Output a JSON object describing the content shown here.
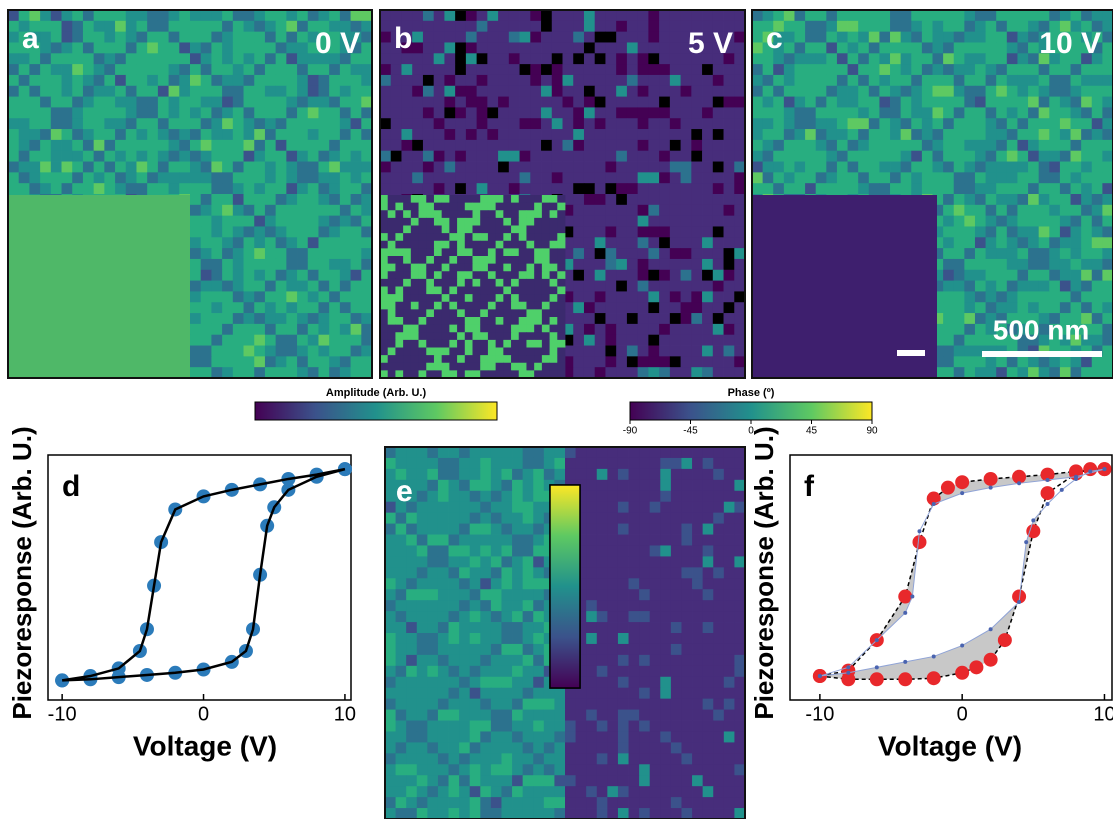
{
  "panels": [
    {
      "label": "a",
      "voltage": "0 V"
    },
    {
      "label": "b",
      "voltage": "5 V"
    },
    {
      "label": "c",
      "voltage": "10 V",
      "scale_bar": "500 nm"
    }
  ],
  "colorbars": {
    "amplitude": {
      "label": "Amplitude (Arb. U.)"
    },
    "phase": {
      "label": "Phase (º)",
      "lim": [
        -90,
        90
      ],
      "ticks": [
        -90,
        -45,
        0,
        45,
        90
      ]
    }
  },
  "panel_e": {
    "label": "e"
  },
  "chart_data": [
    {
      "type": "line",
      "label": "d",
      "ylabel": "Piezoresponse (Arb. U.)",
      "xlabel": "Voltage (V)",
      "xlim": [
        -11,
        10.5
      ],
      "xticks": [
        -10,
        0,
        10
      ],
      "ylim": [
        -1.15,
        1.1
      ],
      "series": [
        {
          "mode": "markers",
          "color": "#2b7bba",
          "x": [
            -10,
            -8,
            -6,
            -4,
            -2,
            0,
            2,
            3,
            3.5,
            4,
            4.5,
            5,
            6,
            8,
            10,
            10,
            8,
            6,
            4,
            2,
            0,
            -2,
            -3,
            -3.5,
            -4,
            -4.5,
            -6,
            -8,
            -10
          ],
          "values": [
            -0.97,
            -0.96,
            -0.94,
            -0.92,
            -0.9,
            -0.87,
            -0.8,
            -0.7,
            -0.5,
            0,
            0.45,
            0.62,
            0.78,
            0.9,
            0.97,
            0.97,
            0.92,
            0.88,
            0.83,
            0.78,
            0.72,
            0.6,
            0.3,
            -0.1,
            -0.5,
            -0.7,
            -0.86,
            -0.93,
            -0.97
          ]
        },
        {
          "mode": "line",
          "color": "#000000",
          "x": [
            -10,
            -8,
            -6,
            -4,
            -2,
            0,
            2,
            3,
            3.5,
            4,
            4.5,
            5,
            6,
            8,
            10,
            10,
            8,
            6,
            4,
            2,
            0,
            -2,
            -3,
            -3.5,
            -4,
            -4.5,
            -6,
            -8,
            -10
          ],
          "values": [
            -0.97,
            -0.96,
            -0.94,
            -0.92,
            -0.9,
            -0.87,
            -0.8,
            -0.7,
            -0.5,
            0,
            0.45,
            0.62,
            0.78,
            0.9,
            0.97,
            0.97,
            0.92,
            0.88,
            0.83,
            0.78,
            0.72,
            0.6,
            0.3,
            -0.1,
            -0.5,
            -0.7,
            -0.86,
            -0.93,
            -0.97
          ]
        }
      ]
    },
    {
      "type": "line",
      "label": "f",
      "ylabel": "Piezoresponse (Arb. U.)",
      "xlabel": "Voltage (V)",
      "xlim": [
        -12.1,
        10.6
      ],
      "xticks": [
        -10,
        0,
        10
      ],
      "ylim": [
        -1.15,
        1.1
      ],
      "series": [
        {
          "mode": "markers-line",
          "color": "#e8282b",
          "x": [
            -10,
            -8,
            -6,
            -4,
            -2,
            0,
            1,
            2,
            3,
            4,
            5,
            6,
            8,
            9,
            10,
            10,
            8,
            6,
            4,
            2,
            0,
            -1,
            -2,
            -3,
            -4,
            -6,
            -8,
            -10
          ],
          "values": [
            -0.93,
            -0.96,
            -0.96,
            -0.96,
            -0.95,
            -0.9,
            -0.85,
            -0.78,
            -0.6,
            -0.2,
            0.4,
            0.75,
            0.93,
            0.97,
            0.97,
            0.97,
            0.95,
            0.92,
            0.9,
            0.88,
            0.85,
            0.8,
            0.7,
            0.3,
            -0.2,
            -0.6,
            -0.88,
            -0.93
          ]
        },
        {
          "mode": "small-markers",
          "color": "#4a64b0",
          "x": [
            -10,
            -8,
            -6,
            -4,
            -2,
            0,
            2,
            4,
            4.5,
            5,
            6,
            7,
            8,
            9,
            10,
            10,
            8,
            6,
            4,
            2,
            0,
            -2,
            -3,
            -3.5,
            -4,
            -6,
            -8,
            -10
          ],
          "values": [
            -0.93,
            -0.9,
            -0.85,
            -0.8,
            -0.75,
            -0.65,
            -0.5,
            -0.25,
            0.3,
            0.5,
            0.65,
            0.78,
            0.88,
            0.95,
            0.97,
            0.97,
            0.9,
            0.87,
            0.84,
            0.8,
            0.75,
            0.65,
            0.4,
            -0.2,
            -0.35,
            -0.6,
            -0.85,
            -0.93
          ]
        }
      ]
    }
  ]
}
